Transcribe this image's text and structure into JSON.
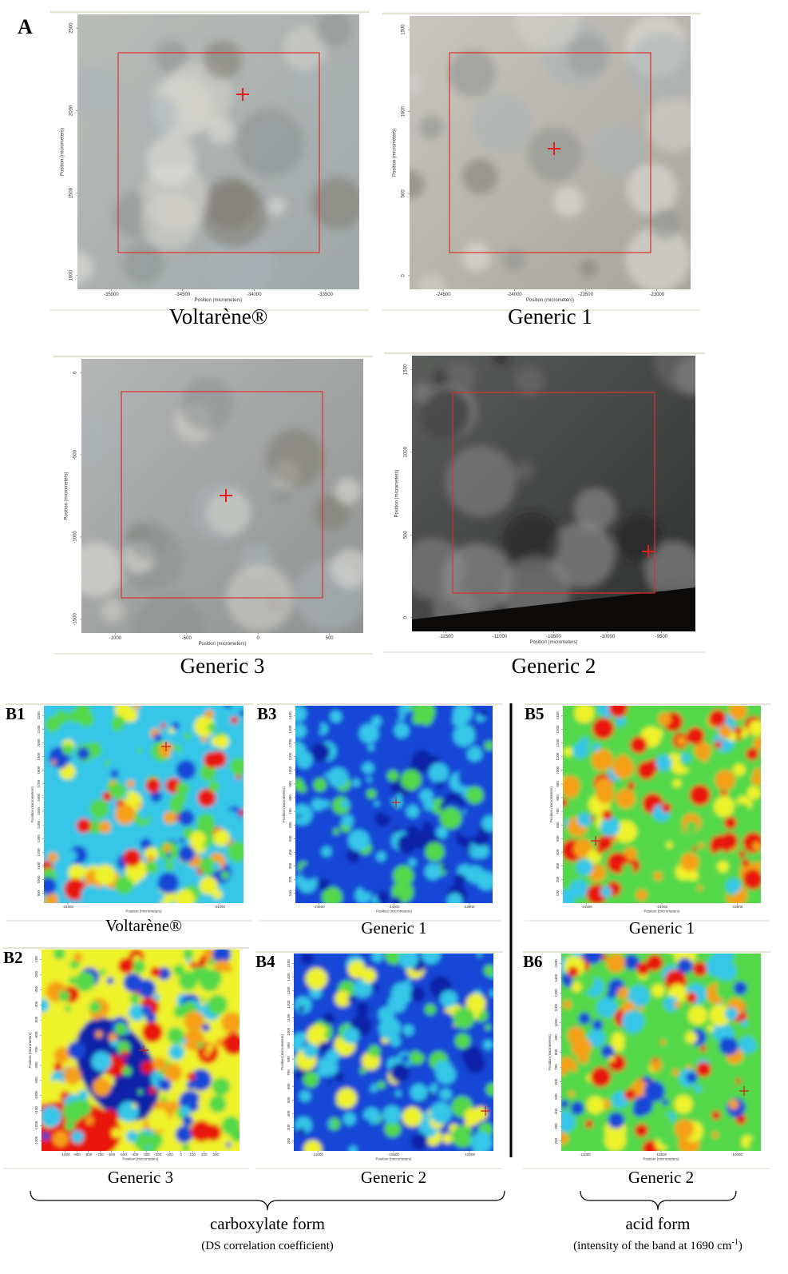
{
  "panel_a": {
    "label": "A",
    "images": [
      {
        "caption": "Voltarène®",
        "x_label": "Position (micrometers)",
        "y_label": "Position (micrometers)",
        "xticks": [
          -35000,
          -34500,
          -34000,
          -33500
        ],
        "yticks": [
          2500,
          2000,
          1500,
          1000
        ]
      },
      {
        "caption": "Generic 1",
        "x_label": "Position (micrometers)",
        "y_label": "Position (micrometers)",
        "xticks": [
          -24500,
          -24000,
          -23500,
          -23000
        ],
        "yticks": [
          1500,
          1000,
          500,
          0
        ]
      },
      {
        "caption": "Generic 3",
        "x_label": "Position (micrometers)",
        "y_label": "Position (micrometers)",
        "xticks": [
          -1000,
          -500,
          0,
          500
        ],
        "yticks": [
          0,
          -500,
          -1000,
          -1500
        ]
      },
      {
        "caption": "Generic 2",
        "x_label": "Position (micrometers)",
        "y_label": "Position (micrometers)",
        "xticks": [
          -11500,
          -11000,
          -10500,
          -10000,
          -9500
        ],
        "yticks": [
          1500,
          1000,
          500,
          0
        ]
      }
    ]
  },
  "panel_b": {
    "maps": [
      {
        "label": "B1",
        "caption": "Voltarène®",
        "x_label": "Position (micrometers)",
        "y_label": "Position (micrometers)",
        "xticks": [
          -34500,
          -34000
        ],
        "yticks": [
          2200,
          2100,
          2000,
          1900,
          1800,
          1700,
          1600,
          1500,
          1400,
          1300,
          1200,
          1100,
          1000,
          900
        ]
      },
      {
        "label": "B3",
        "caption": "Generic 1",
        "x_label": "Position (micrometers)",
        "y_label": "Position (micrometers)",
        "xticks": [
          -24500,
          -24000,
          -23500
        ],
        "yticks": [
          1400,
          1300,
          1200,
          1100,
          1000,
          900,
          800,
          700,
          600,
          500,
          400,
          300,
          200,
          100
        ]
      },
      {
        "label": "B5",
        "caption": "Generic 1",
        "x_label": "Position (micrometers)",
        "y_label": "Position (micrometers)",
        "xticks": [
          -24500,
          -24000,
          -23500
        ],
        "yticks": [
          1400,
          1300,
          1200,
          1100,
          1000,
          900,
          800,
          700,
          600,
          500,
          400,
          300,
          200,
          100
        ]
      },
      {
        "label": "B2",
        "caption": "Generic 3",
        "x_label": "Position (micrometers)",
        "y_label": "Position (micrometers)",
        "xticks": [
          -1000,
          -900,
          -800,
          -700,
          -600,
          -500,
          -400,
          -300,
          -200,
          -100,
          0,
          100,
          200,
          300
        ],
        "yticks": [
          -100,
          -200,
          -300,
          -400,
          -500,
          -600,
          -700,
          -800,
          -900,
          -1000,
          -1100,
          -1200,
          -1300
        ]
      },
      {
        "label": "B4",
        "caption": "Generic 2",
        "x_label": "Position (micrometers)",
        "y_label": "Position (micrometers)",
        "xticks": [
          -11000,
          -10500,
          -10000
        ],
        "yticks": [
          1500,
          1400,
          1300,
          1200,
          1100,
          1000,
          900,
          800,
          700,
          600,
          500,
          400,
          300,
          200
        ]
      },
      {
        "label": "B6",
        "caption": "Generic 2",
        "x_label": "Position (micrometers)",
        "y_label": "Position (micrometers)",
        "xticks": [
          -11000,
          -10500,
          -10000
        ],
        "yticks": [
          1500,
          1400,
          1300,
          1100,
          1000,
          900,
          800,
          700,
          600,
          500,
          400,
          300,
          200
        ]
      }
    ]
  },
  "groups": [
    {
      "label": "carboxylate form",
      "note": "(DS correlation coefficient)"
    },
    {
      "label": "acid form",
      "note": "(intensity  of the band at 1690 cm",
      "note_sup": "-1",
      "note_end": ")"
    }
  ]
}
